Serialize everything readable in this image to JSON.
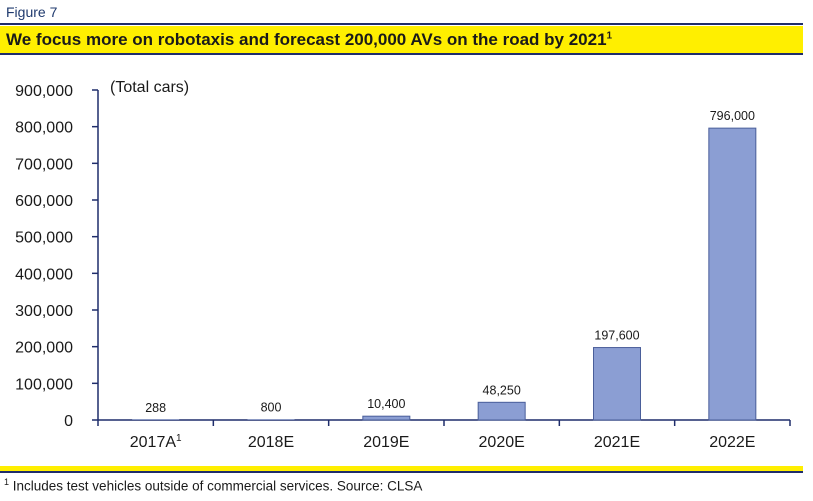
{
  "figure_label": "Figure 7",
  "title": "We focus more on robotaxis and forecast 200,000 AVs on the road by 2021",
  "title_footnote_mark": "1",
  "footnote": {
    "mark": "1",
    "text": " Includes test vehicles outside of commercial services. Source: CLSA"
  },
  "colors": {
    "bar": "#8b9ed3",
    "bar_stroke": "#4a5e9a",
    "axis": "#1f2d6b",
    "title_band": "#ffef00"
  },
  "chart_data": {
    "type": "bar",
    "categories": [
      "2017A",
      "2018E",
      "2019E",
      "2020E",
      "2021E",
      "2022E"
    ],
    "category_superscripts": [
      "1",
      "",
      "",
      "",
      "",
      ""
    ],
    "values": [
      288,
      800,
      10400,
      48250,
      197600,
      796000
    ],
    "value_labels": [
      "288",
      "800",
      "10,400",
      "48,250",
      "197,600",
      "796,000"
    ],
    "ylabel": "(Total cars)",
    "ylim": [
      0,
      900000
    ],
    "yticks": [
      0,
      100000,
      200000,
      300000,
      400000,
      500000,
      600000,
      700000,
      800000,
      900000
    ],
    "ytick_labels": [
      "0",
      "100,000",
      "200,000",
      "300,000",
      "400,000",
      "500,000",
      "600,000",
      "700,000",
      "800,000",
      "900,000"
    ],
    "grid": false,
    "legend": "none"
  }
}
